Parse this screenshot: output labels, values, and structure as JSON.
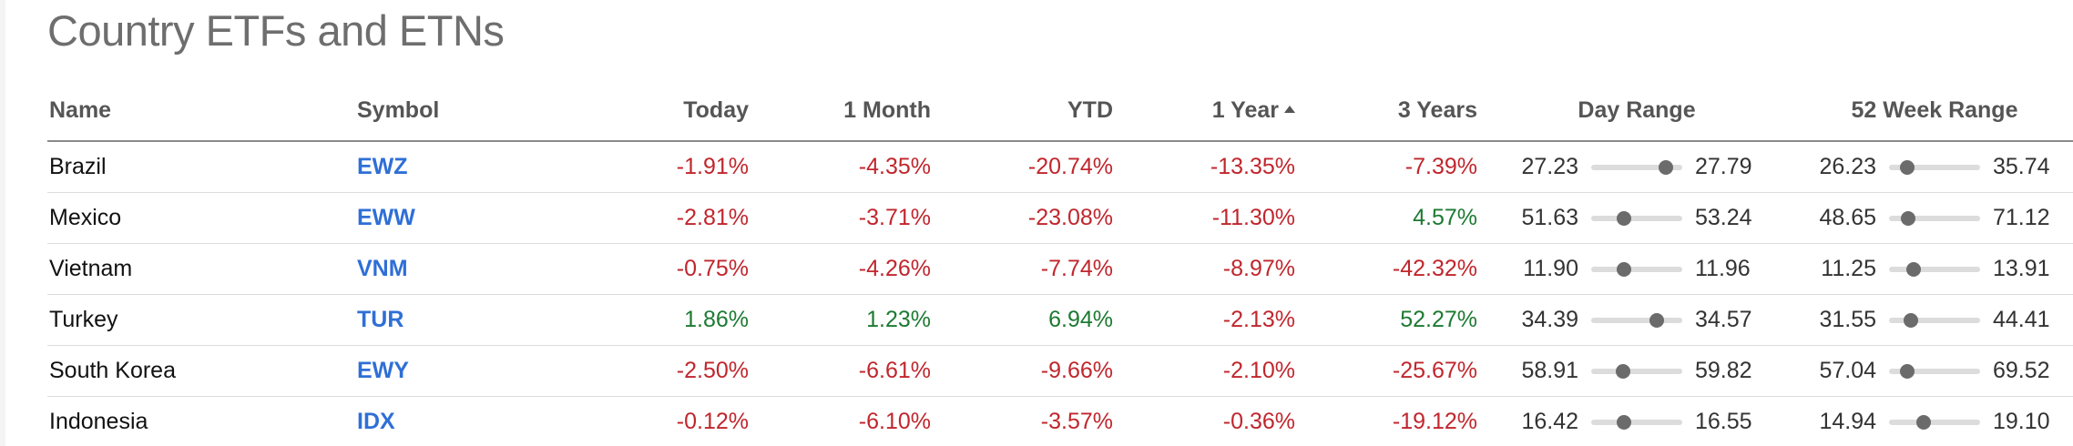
{
  "page": {
    "title": "Country ETFs and ETNs"
  },
  "table": {
    "headers": {
      "name": "Name",
      "symbol": "Symbol",
      "today": "Today",
      "month": "1 Month",
      "ytd": "YTD",
      "year": "1 Year",
      "three_years": "3 Years",
      "day_range": "Day Range",
      "week52_range": "52 Week Range"
    },
    "sorted_column": "1 Year",
    "sort_direction": "ascending",
    "colors": {
      "negative": "#c0262d",
      "positive": "#1d7a32",
      "symbol_link": "#2f6fd6"
    },
    "rows": [
      {
        "name": "Brazil",
        "symbol": "EWZ",
        "today": "-1.91%",
        "month": "-4.35%",
        "ytd": "-20.74%",
        "year": "-13.35%",
        "three_years": "-7.39%",
        "day_low": "27.23",
        "day_high": "27.79",
        "day_pos": 0.82,
        "wk_low": "26.23",
        "wk_high": "35.74",
        "wk_pos": 0.2
      },
      {
        "name": "Mexico",
        "symbol": "EWW",
        "today": "-2.81%",
        "month": "-3.71%",
        "ytd": "-23.08%",
        "year": "-11.30%",
        "three_years": "4.57%",
        "day_low": "51.63",
        "day_high": "53.24",
        "day_pos": 0.36,
        "wk_low": "48.65",
        "wk_high": "71.12",
        "wk_pos": 0.21
      },
      {
        "name": "Vietnam",
        "symbol": "VNM",
        "today": "-0.75%",
        "month": "-4.26%",
        "ytd": "-7.74%",
        "year": "-8.97%",
        "three_years": "-42.32%",
        "day_low": "11.90",
        "day_high": "11.96",
        "day_pos": 0.36,
        "wk_low": "11.25",
        "wk_high": "13.91",
        "wk_pos": 0.27
      },
      {
        "name": "Turkey",
        "symbol": "TUR",
        "today": "1.86%",
        "month": "1.23%",
        "ytd": "6.94%",
        "year": "-2.13%",
        "three_years": "52.27%",
        "day_low": "34.39",
        "day_high": "34.57",
        "day_pos": 0.72,
        "wk_low": "31.55",
        "wk_high": "44.41",
        "wk_pos": 0.24
      },
      {
        "name": "South Korea",
        "symbol": "EWY",
        "today": "-2.50%",
        "month": "-6.61%",
        "ytd": "-9.66%",
        "year": "-2.10%",
        "three_years": "-25.67%",
        "day_low": "58.91",
        "day_high": "59.82",
        "day_pos": 0.35,
        "wk_low": "57.04",
        "wk_high": "69.52",
        "wk_pos": 0.2
      },
      {
        "name": "Indonesia",
        "symbol": "IDX",
        "today": "-0.12%",
        "month": "-6.10%",
        "ytd": "-3.57%",
        "year": "-0.36%",
        "three_years": "-19.12%",
        "day_low": "16.42",
        "day_high": "16.55",
        "day_pos": 0.36,
        "wk_low": "14.94",
        "wk_high": "19.10",
        "wk_pos": 0.38
      }
    ]
  }
}
